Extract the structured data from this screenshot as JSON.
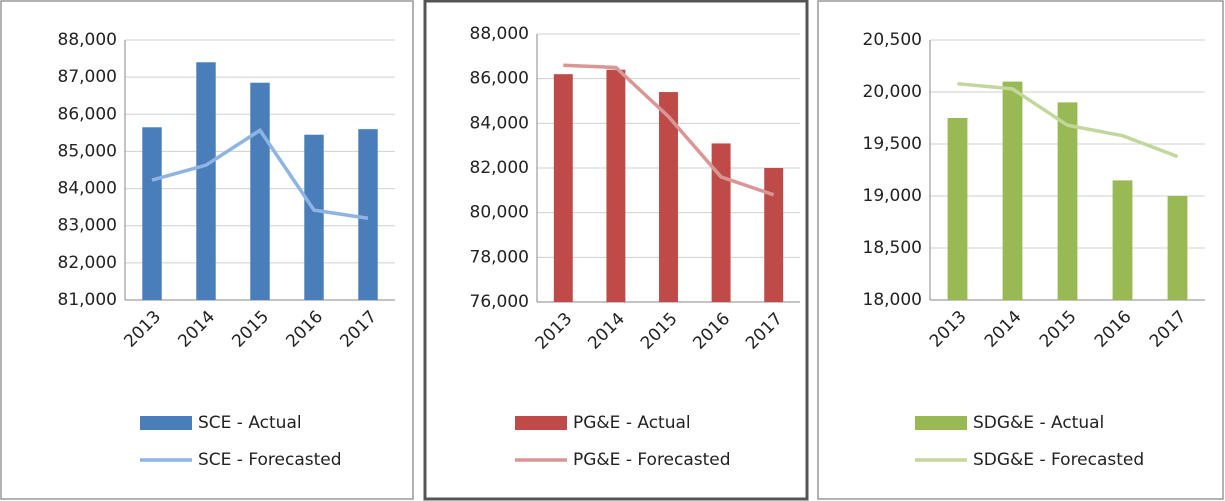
{
  "chart_data": [
    {
      "type": "bar",
      "categories": [
        "2013",
        "2014",
        "2015",
        "2016",
        "2017"
      ],
      "series": [
        {
          "name": "SCE - Actual",
          "type": "bar",
          "color": "#4a7ebb",
          "values": [
            85650,
            87400,
            86850,
            85450,
            85600
          ]
        },
        {
          "name": "SCE - Forecasted",
          "type": "line",
          "color": "#8db4e2",
          "values": [
            84230,
            84630,
            85570,
            83420,
            83200
          ]
        }
      ],
      "ylim": [
        81000,
        88000
      ],
      "yticks": [
        {
          "value": 81000,
          "label": "81,000"
        },
        {
          "value": 82000,
          "label": "82,000"
        },
        {
          "value": 83000,
          "label": "83,000"
        },
        {
          "value": 84000,
          "label": "84,000"
        },
        {
          "value": 85000,
          "label": "85,000"
        },
        {
          "value": 86000,
          "label": "86,000"
        },
        {
          "value": 87000,
          "label": "87,000"
        },
        {
          "value": 88000,
          "label": "88,000"
        }
      ],
      "grid": true
    },
    {
      "type": "bar",
      "categories": [
        "2013",
        "2014",
        "2015",
        "2016",
        "2017"
      ],
      "series": [
        {
          "name": "PG&E - Actual",
          "type": "bar",
          "color": "#be4b48",
          "values": [
            86200,
            86400,
            85400,
            83100,
            82000
          ]
        },
        {
          "name": "PG&E - Forecasted",
          "type": "line",
          "color": "#d99694",
          "values": [
            86600,
            86500,
            84300,
            81600,
            80800
          ]
        }
      ],
      "ylim": [
        76000,
        88000
      ],
      "yticks": [
        {
          "value": 76000,
          "label": "76,000"
        },
        {
          "value": 78000,
          "label": "78,000"
        },
        {
          "value": 80000,
          "label": "80,000"
        },
        {
          "value": 82000,
          "label": "82,000"
        },
        {
          "value": 84000,
          "label": "84,000"
        },
        {
          "value": 86000,
          "label": "86,000"
        },
        {
          "value": 88000,
          "label": "88,000"
        }
      ],
      "grid": true
    },
    {
      "type": "bar",
      "categories": [
        "2013",
        "2014",
        "2015",
        "2016",
        "2017"
      ],
      "series": [
        {
          "name": "SDG&E - Actual",
          "type": "bar",
          "color": "#98b954",
          "values": [
            19750,
            20100,
            19900,
            19150,
            19000
          ]
        },
        {
          "name": "SDG&E - Forecasted",
          "type": "line",
          "color": "#c3d69b",
          "values": [
            20080,
            20030,
            19680,
            19580,
            19380
          ]
        }
      ],
      "ylim": [
        18000,
        20500
      ],
      "yticks": [
        {
          "value": 18000,
          "label": "18,000"
        },
        {
          "value": 18500,
          "label": "18,500"
        },
        {
          "value": 19000,
          "label": "19,000"
        },
        {
          "value": 19500,
          "label": "19,500"
        },
        {
          "value": 20000,
          "label": "20,000"
        },
        {
          "value": {
            "value": 20500
          },
          "label": "20,500"
        }
      ],
      "grid": true
    }
  ]
}
